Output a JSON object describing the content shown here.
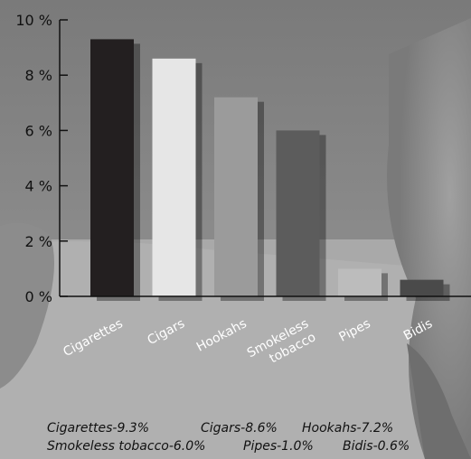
{
  "chart_data": {
    "type": "bar",
    "categories": [
      "Cigarettes",
      "Cigars",
      "Hookahs",
      "Smokeless tobacco",
      "Pipes",
      "Bidis"
    ],
    "values": [
      9.3,
      8.6,
      7.2,
      6.0,
      1.0,
      0.6
    ],
    "colors": [
      "#231f20",
      "#e6e6e6",
      "#9b9b9b",
      "#5c5c5c",
      "#bcbcbc",
      "#4a4a4a"
    ],
    "yticks": [
      "0 %",
      "2 %",
      "4 %",
      "6 %",
      "8 %",
      "10 %"
    ],
    "ylim": [
      0,
      10
    ],
    "grid": false,
    "category_labels": [
      [
        "Cigarettes"
      ],
      [
        "Cigars"
      ],
      [
        "Hookahs"
      ],
      [
        "Smokeless",
        "tobacco"
      ],
      [
        "Pipes"
      ],
      [
        "Bidis"
      ]
    ]
  },
  "legend": {
    "line1": [
      "Cigarettes-9.3%",
      "Cigars-8.6%",
      "Hookahs-7.2%"
    ],
    "line2": [
      "Smokeless tobacco-6.0%",
      "Pipes-1.0%",
      "Bidis-0.6%"
    ]
  }
}
